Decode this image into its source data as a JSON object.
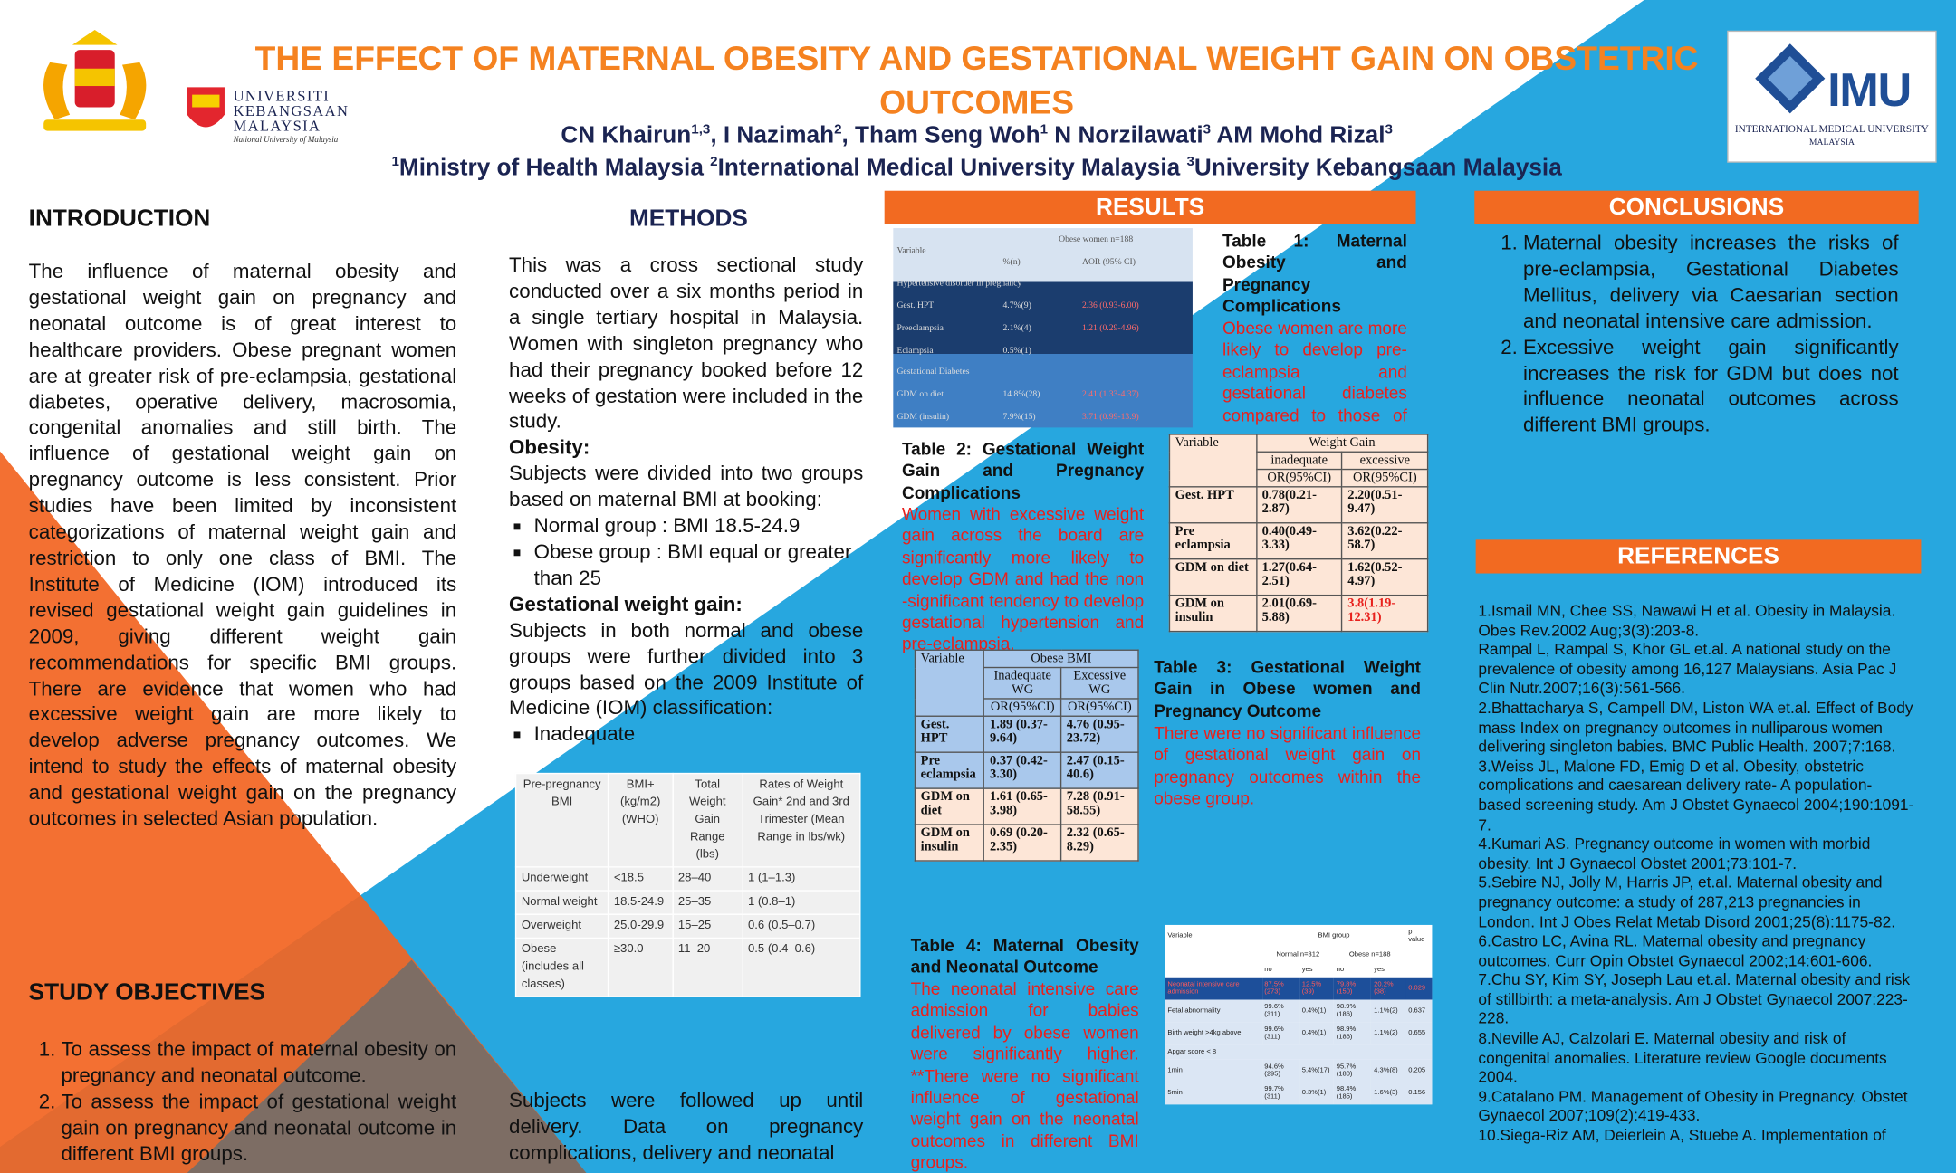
{
  "header": {
    "title": "THE EFFECT OF MATERNAL OBESITY AND GESTATIONAL WEIGHT GAIN ON OBSTETRIC OUTCOMES",
    "authors": [
      {
        "text": "CN Khairun",
        "sup": "1,3"
      },
      {
        "text": ", I Nazimah",
        "sup": "2"
      },
      {
        "text": ", Tham Seng Woh",
        "sup": "1"
      },
      {
        "text": " N Norzilawati",
        "sup": "3"
      },
      {
        "text": " AM Mohd Rizal",
        "sup": "3"
      }
    ],
    "affiliations": [
      {
        "sup": "1",
        "text": "Ministry of Health Malaysia "
      },
      {
        "sup": "2",
        "text": "International Medical University Malaysia "
      },
      {
        "sup": "3",
        "text": "University Kebangsaan Malaysia"
      }
    ]
  },
  "logos": {
    "ukm_name": [
      "UNIVERSITI",
      "KEBANGSAAN",
      "MALAYSIA"
    ],
    "ukm_tagline": "National University of Malaysia",
    "imu_short": "IMU",
    "imu_name": "INTERNATIONAL MEDICAL UNIVERSITY",
    "imu_country": "MALAYSIA"
  },
  "introduction": {
    "heading": "INTRODUCTION",
    "text": "The influence of maternal obesity and gestational weight gain on pregnancy and neonatal outcome is of great interest to healthcare providers. Obese pregnant women are at greater risk of pre-eclampsia, gestational diabetes, operative delivery, macrosomia, congenital anomalies and still birth. The influence of gestational weight gain on pregnancy outcome is less consistent. Prior studies have been limited by inconsistent categorizations of maternal weight gain and restriction to only one class of BMI. The Institute of Medicine (IOM) introduced its revised gestational weight gain guidelines in 2009, giving different weight gain recommendations for specific BMI groups. There are evidence that women who had excessive weight gain are more likely to develop adverse pregnancy outcomes. We intend to study the effects of maternal obesity and gestational weight gain  on the pregnancy outcomes in selected Asian population."
  },
  "study_objectives": {
    "heading": "STUDY OBJECTIVES",
    "items": [
      "To assess the impact of maternal obesity on pregnancy and neonatal outcome.",
      "To assess the impact of gestational weight gain on pregnancy and neonatal outcome in  different BMI groups."
    ]
  },
  "methods": {
    "heading": "METHODS",
    "blocks": [
      {
        "p": "This was a cross sectional study conducted over a six months period in a single tertiary hospital in Malaysia. Women with singleton pregnancy who had their pregnancy booked before 12 weeks of gestation were included in the study."
      },
      {
        "h": "Obesity:"
      },
      {
        "p": "Subjects were divided into two groups based on maternal BMI at booking:"
      },
      {
        "li": "Normal group : BMI 18.5-24.9"
      },
      {
        "li": "Obese group  :  BMI equal or greater than 25"
      },
      {
        "h": "Gestational weight gain:"
      },
      {
        "p": "Subjects in both normal and obese groups were further divided into 3 groups based on the 2009 Institute of Medicine (IOM) classification:"
      },
      {
        "li": "Inadequate"
      }
    ],
    "followup": "Subjects were followed up until delivery. Data on pregnancy complications, delivery and neonatal",
    "iom_table": {
      "header": [
        "Pre-pregnancy BMI",
        "BMI+ (kg/m2) (WHO)",
        "Total Weight Gain Range (lbs)",
        "Rates of Weight Gain* 2nd and 3rd Trimester (Mean Range in lbs/wk)"
      ],
      "rows": [
        [
          "Underweight",
          "<18.5",
          "28–40",
          "1 (1–1.3)"
        ],
        [
          "Normal weight",
          "18.5-24.9",
          "25–35",
          "1 (0.8–1)"
        ],
        [
          "Overweight",
          "25.0-29.9",
          "15–25",
          "0.6 (0.5–0.7)"
        ],
        [
          "Obese (includes all classes)",
          "≥30.0",
          "11–20",
          "0.5 (0.4–0.6)"
        ]
      ]
    }
  },
  "results": {
    "heading": "RESULTS",
    "table1": {
      "caption": "Table 1: Maternal Obesity and Pregnancy Complications",
      "text": "Obese women are more likely to develop pre-eclampsia and gestational diabetes compared to those of normal weight",
      "head": [
        "Variable",
        "Obese women n=188",
        "%(n)",
        "AOR (95% CI)"
      ],
      "rows": [
        [
          "Hypertensive disorder in pregnancy"
        ],
        [
          "Gest. HPT",
          "4.7%(9)",
          "2.36 (0.93-6.00)"
        ],
        [
          "Preeclampsia",
          "2.1%(4)",
          "1.21 (0.29-4.96)"
        ],
        [
          "Eclampsia",
          "0.5%(1)"
        ],
        [
          "Gestational Diabetes"
        ],
        [
          "GDM on diet",
          "14.8%(28)",
          "2.41 (1.33-4.37)"
        ],
        [
          "GDM (insulin)",
          "7.9%(15)",
          "3.71 (0.99-13.9)"
        ]
      ]
    },
    "table2": {
      "caption": "Table 2: Gestational Weight Gain and Pregnancy Complications",
      "text": "Women with excessive weight gain across the board are significantly more likely to develop GDM and had the non -significant tendency to develop gestational hypertension and pre-eclampsia.",
      "head": [
        "Variable",
        "Weight Gain",
        "inadequate",
        "excessive",
        "OR(95%CI)",
        "OR(95%CI)"
      ],
      "rows": [
        [
          "Gest. HPT",
          "0.78(0.21-2.87)",
          "2.20(0.51-9.47)"
        ],
        [
          "Pre eclampsia",
          "0.40(0.49-3.33)",
          "3.62(0.22-58.7)"
        ],
        [
          "GDM on diet",
          "1.27(0.64-2.51)",
          "1.62(0.52-4.97)"
        ],
        [
          "GDM on insulin",
          "2.01(0.69-5.88)",
          "3.8(1.19-12.31)"
        ]
      ]
    },
    "table3": {
      "caption": "Table 3: Gestational Weight Gain in Obese women and Pregnancy Outcome",
      "text": "There were no significant influence of gestational weight gain on pregnancy outcomes within the obese group.",
      "head": [
        "Variable",
        "Obese BMI",
        "Inadequate WG",
        "Excessive WG",
        "OR(95%CI)",
        "OR(95%CI)"
      ],
      "rows": [
        [
          "Gest. HPT",
          "1.89 (0.37-9.64)",
          "4.76 (0.95-23.72)"
        ],
        [
          "Pre eclampsia",
          "0.37 (0.42-3.30)",
          "2.47 (0.15-40.6)"
        ],
        [
          "GDM on diet",
          "1.61 (0.65-3.98)",
          "7.28 (0.91-58.55)"
        ],
        [
          "GDM on insulin",
          "0.69 (0.20-2.35)",
          "2.32 (0.65-8.29)"
        ]
      ]
    },
    "table4": {
      "caption": "Table 4: Maternal Obesity and Neonatal Outcome",
      "text": "The neonatal intensive care admission for babies delivered by obese women were significantly higher. **There were no significant influence of gestational weight gain  on the neonatal outcomes in different BMI groups.",
      "head": [
        "Variable",
        "BMI group",
        "p value",
        "Normal n=312",
        "Obese n=188",
        "no",
        "yes",
        "no",
        "yes"
      ],
      "rows": [
        [
          "Neonatal intensive care admission",
          "87.5%(273)",
          "12.5%(39)",
          "79.8%(150)",
          "20.2%(38)",
          "0.029"
        ],
        [
          "Fetal abnormality",
          "99.6%(311)",
          "0.4%(1)",
          "98.9%(186)",
          "1.1%(2)",
          "0.637"
        ],
        [
          "Birth weight >4kg above",
          "99.6%(311)",
          "0.4%(1)",
          "98.9%(186)",
          "1.1%(2)",
          "0.655"
        ],
        [
          "Apgar score < 8"
        ],
        [
          "1min",
          "94.6%(295)",
          "5.4%(17)",
          "95.7%(180)",
          "4.3%(8)",
          "0.205"
        ],
        [
          "5min",
          "99.7%(311)",
          "0.3%(1)",
          "98.4%(185)",
          "1.6%(3)",
          "0.156"
        ]
      ]
    }
  },
  "conclusions": {
    "heading": "CONCLUSIONS",
    "items": [
      "Maternal obesity increases the risks of pre-eclampsia, Gestational Diabetes Mellitus, delivery via Caesarian section and neonatal intensive care admission.",
      "Excessive weight gain significantly increases the risk for GDM but does not influence neonatal outcomes across different BMI groups."
    ]
  },
  "references": {
    "heading": "REFERENCES",
    "items": [
      "1.Ismail MN, Chee SS, Nawawi H et al. Obesity in Malaysia. Obes Rev.2002 Aug;3(3):203-8.",
      "Rampal L, Rampal S, Khor GL et.al. A national study on the prevalence of obesity among 16,127 Malaysians. Asia Pac J Clin Nutr.2007;16(3):561-566.",
      "2.Bhattacharya S, Campell DM, Liston WA et.al. Effect of Body mass Index on pregnancy outcomes in nulliparous women delivering singleton babies. BMC Public Health. 2007;7:168.",
      "3.Weiss JL, Malone FD, Emig D et al. Obesity, obstetric complications and caesarean delivery rate- A population-based screening study. Am J Obstet Gynaecol 2004;190:1091-7.",
      "4.Kumari AS. Pregnancy outcome in women with morbid obesity. Int J Gynaecol Obstet 2001;73:101-7.",
      "5.Sebire NJ, Jolly M, Harris JP, et.al. Maternal obesity and pregnancy outcome: a study of 287,213 pregnancies in London. Int J Obes Relat Metab Disord 2001;25(8):1175-82.",
      "6.Castro LC, Avina RL. Maternal obesity and pregnancy outcomes. Curr Opin Obstet Gynaecol 2002;14:601-606.",
      "7.Chu SY, Kim SY, Joseph Lau et.al. Maternal obesity and risk of stillbirth: a meta-analysis. Am J Obstet Gynaecol 2007:223-228.",
      "8.Neville AJ, Calzolari E. Maternal obesity and risk of congenital anomalies. Literature review Google documents 2004.",
      "9.Catalano PM. Management of Obesity in Pregnancy. Obstet Gynaecol 2007;109(2):419-433.",
      "10.Siega-Riz AM, Deierlein A, Stuebe A. Implementation of"
    ]
  }
}
